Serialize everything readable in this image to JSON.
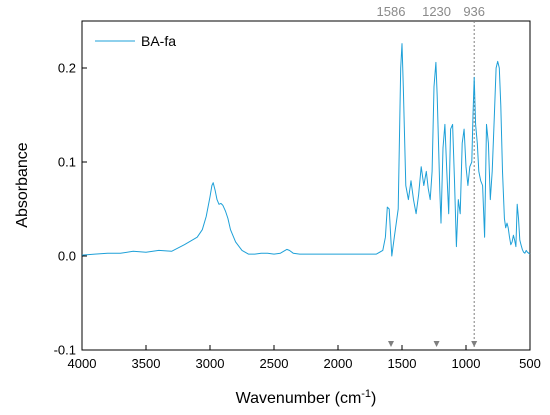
{
  "chart_data": {
    "type": "line",
    "xlabel": "Wavenumber (cm",
    "xlabel_sup": "-1",
    "xlabel_tail": ")",
    "ylabel": "Absorbance",
    "xlim": [
      4000,
      500
    ],
    "ylim": [
      -0.1,
      0.25
    ],
    "x_reversed": true,
    "x_ticks": [
      4000,
      3500,
      3000,
      2500,
      2000,
      1500,
      1000,
      500
    ],
    "x_tick_labels": [
      "4000",
      "3500",
      "3000",
      "2500",
      "2000",
      "1500",
      "1000",
      "500"
    ],
    "y_ticks": [
      -0.1,
      0.0,
      0.1,
      0.2
    ],
    "y_tick_labels": [
      "-0.1",
      "0.0",
      "0.1",
      "0.2"
    ],
    "grid": false,
    "legend_position": "top-left",
    "series": [
      {
        "name": "BA-fa",
        "color": "#1ea0d8",
        "x": [
          4000,
          3900,
          3800,
          3700,
          3600,
          3500,
          3400,
          3300,
          3200,
          3100,
          3060,
          3030,
          3000,
          2985,
          2975,
          2960,
          2945,
          2930,
          2915,
          2900,
          2880,
          2860,
          2840,
          2800,
          2750,
          2700,
          2650,
          2600,
          2550,
          2500,
          2450,
          2400,
          2380,
          2350,
          2300,
          2200,
          2100,
          2000,
          1900,
          1800,
          1700,
          1650,
          1630,
          1615,
          1600,
          1590,
          1580,
          1560,
          1530,
          1510,
          1500,
          1490,
          1470,
          1450,
          1430,
          1410,
          1390,
          1370,
          1350,
          1330,
          1310,
          1295,
          1280,
          1265,
          1250,
          1235,
          1225,
          1215,
          1205,
          1195,
          1180,
          1165,
          1150,
          1135,
          1120,
          1105,
          1090,
          1075,
          1060,
          1045,
          1030,
          1015,
          1000,
          985,
          970,
          955,
          945,
          936,
          925,
          912,
          900,
          885,
          870,
          855,
          840,
          825,
          810,
          795,
          780,
          765,
          752,
          740,
          728,
          715,
          700,
          690,
          680,
          670,
          660,
          650,
          640,
          630,
          620,
          610,
          600,
          590,
          580,
          570,
          560,
          550,
          540,
          530,
          520,
          510,
          500
        ],
        "y": [
          0.001,
          0.002,
          0.003,
          0.003,
          0.005,
          0.004,
          0.006,
          0.005,
          0.012,
          0.02,
          0.028,
          0.042,
          0.063,
          0.075,
          0.078,
          0.07,
          0.06,
          0.055,
          0.056,
          0.054,
          0.048,
          0.04,
          0.028,
          0.015,
          0.006,
          0.002,
          0.002,
          0.003,
          0.003,
          0.002,
          0.003,
          0.007,
          0.006,
          0.003,
          0.002,
          0.002,
          0.002,
          0.002,
          0.002,
          0.002,
          0.002,
          0.006,
          0.02,
          0.052,
          0.05,
          0.025,
          0.0,
          0.02,
          0.05,
          0.2,
          0.226,
          0.18,
          0.075,
          0.06,
          0.08,
          0.06,
          0.045,
          0.065,
          0.095,
          0.075,
          0.09,
          0.072,
          0.06,
          0.09,
          0.18,
          0.206,
          0.17,
          0.12,
          0.07,
          0.035,
          0.115,
          0.14,
          0.09,
          0.045,
          0.135,
          0.14,
          0.08,
          0.01,
          0.06,
          0.045,
          0.12,
          0.135,
          0.095,
          0.075,
          0.095,
          0.1,
          0.15,
          0.19,
          0.14,
          0.12,
          0.09,
          0.08,
          0.075,
          0.02,
          0.14,
          0.12,
          0.06,
          0.09,
          0.145,
          0.2,
          0.207,
          0.2,
          0.16,
          0.09,
          0.04,
          0.03,
          0.035,
          0.03,
          0.02,
          0.012,
          0.015,
          0.022,
          0.017,
          0.01,
          0.055,
          0.04,
          0.017,
          0.012,
          0.007,
          0.004,
          0.003,
          0.006,
          0.004,
          0.003,
          0.002
        ]
      }
    ],
    "annotations": [
      {
        "label": "1586",
        "x": 1586,
        "marker": "triangle",
        "vline": false
      },
      {
        "label": "1230",
        "x": 1230,
        "marker": "triangle",
        "vline": false
      },
      {
        "label": "936",
        "x": 936,
        "marker": "triangle",
        "vline": true
      }
    ]
  }
}
